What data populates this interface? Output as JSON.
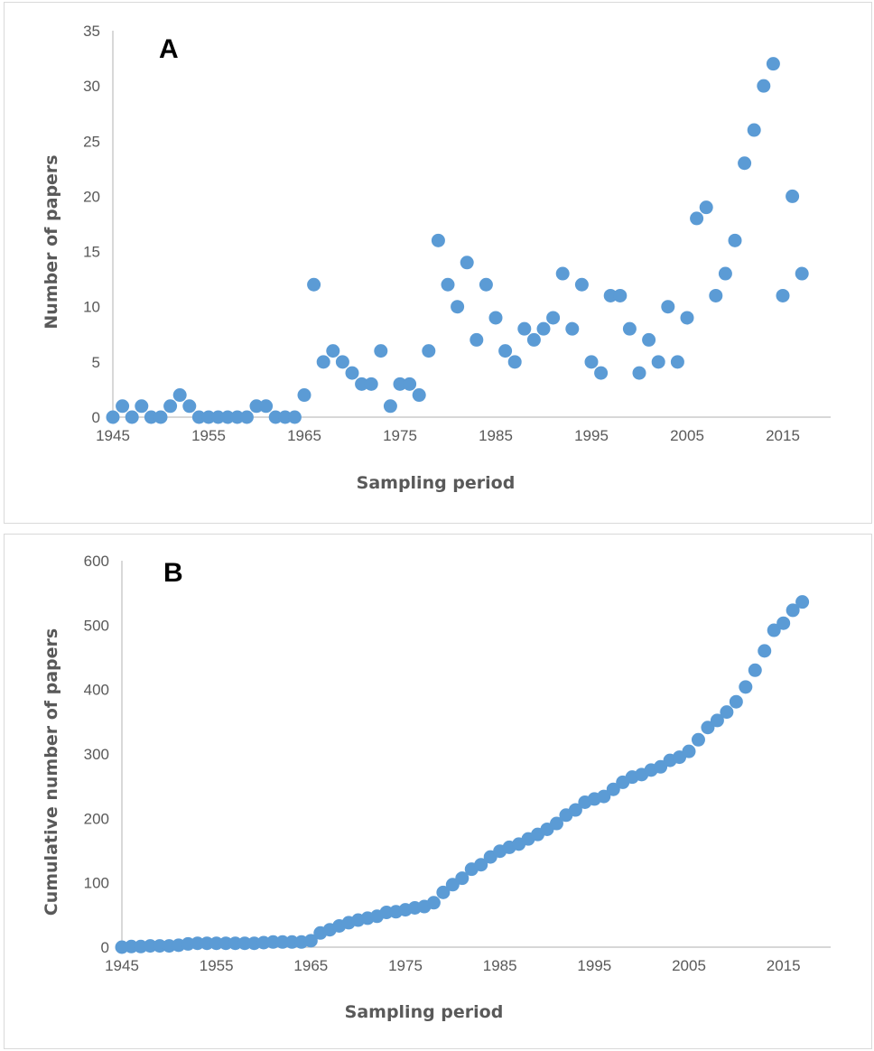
{
  "colors": {
    "marker": "#5b9bd5",
    "axis": "#bfbfbf",
    "text": "#595959"
  },
  "chart_data": [
    {
      "type": "scatter",
      "panel_label": "A",
      "xlabel": "Sampling period",
      "ylabel": "Number of papers",
      "xlim": [
        1945,
        2020
      ],
      "ylim": [
        0,
        35
      ],
      "xticks": [
        1945,
        1955,
        1965,
        1975,
        1985,
        1995,
        2005,
        2015
      ],
      "yticks": [
        0,
        5,
        10,
        15,
        20,
        25,
        30,
        35
      ],
      "grid": false,
      "legend": "none",
      "series": [
        {
          "x": [
            1945,
            1946,
            1947,
            1948,
            1949,
            1950,
            1951,
            1952,
            1953,
            1954,
            1955,
            1956,
            1957,
            1958,
            1959,
            1960,
            1961,
            1962,
            1963,
            1964,
            1965,
            1966,
            1967,
            1968,
            1969,
            1970,
            1971,
            1972,
            1973,
            1974,
            1975,
            1976,
            1977,
            1978,
            1979,
            1980,
            1981,
            1982,
            1983,
            1984,
            1985,
            1986,
            1987,
            1988,
            1989,
            1990,
            1991,
            1992,
            1993,
            1994,
            1995,
            1996,
            1997,
            1998,
            1999,
            2000,
            2001,
            2002,
            2003,
            2004,
            2005,
            2006,
            2007,
            2008,
            2009,
            2010,
            2011,
            2012,
            2013,
            2014,
            2015,
            2016,
            2017
          ],
          "y": [
            0,
            1,
            0,
            1,
            0,
            0,
            1,
            2,
            1,
            0,
            0,
            0,
            0,
            0,
            0,
            1,
            1,
            0,
            0,
            0,
            2,
            12,
            5,
            6,
            5,
            4,
            3,
            3,
            6,
            1,
            3,
            3,
            2,
            6,
            16,
            12,
            10,
            14,
            7,
            12,
            9,
            6,
            5,
            8,
            7,
            8,
            9,
            13,
            8,
            12,
            5,
            4,
            11,
            11,
            8,
            4,
            7,
            5,
            10,
            5,
            9,
            18,
            19,
            11,
            13,
            16,
            23,
            26,
            30,
            32,
            11,
            20,
            13
          ]
        }
      ]
    },
    {
      "type": "scatter",
      "panel_label": "B",
      "xlabel": "Sampling period",
      "ylabel": "Cumulative number of papers",
      "xlim": [
        1945,
        2020
      ],
      "ylim": [
        0,
        600
      ],
      "xticks": [
        1945,
        1955,
        1965,
        1975,
        1985,
        1995,
        2005,
        2015
      ],
      "yticks": [
        0,
        100,
        200,
        300,
        400,
        500,
        600
      ],
      "grid": false,
      "legend": "none",
      "series": [
        {
          "x": [
            1945,
            1946,
            1947,
            1948,
            1949,
            1950,
            1951,
            1952,
            1953,
            1954,
            1955,
            1956,
            1957,
            1958,
            1959,
            1960,
            1961,
            1962,
            1963,
            1964,
            1965,
            1966,
            1967,
            1968,
            1969,
            1970,
            1971,
            1972,
            1973,
            1974,
            1975,
            1976,
            1977,
            1978,
            1979,
            1980,
            1981,
            1982,
            1983,
            1984,
            1985,
            1986,
            1987,
            1988,
            1989,
            1990,
            1991,
            1992,
            1993,
            1994,
            1995,
            1996,
            1997,
            1998,
            1999,
            2000,
            2001,
            2002,
            2003,
            2004,
            2005,
            2006,
            2007,
            2008,
            2009,
            2010,
            2011,
            2012,
            2013,
            2014,
            2015,
            2016,
            2017
          ],
          "y": [
            0,
            1,
            1,
            2,
            2,
            2,
            3,
            5,
            6,
            6,
            6,
            6,
            6,
            6,
            6,
            7,
            8,
            8,
            8,
            8,
            10,
            22,
            27,
            33,
            38,
            42,
            45,
            48,
            54,
            55,
            58,
            61,
            63,
            69,
            85,
            97,
            107,
            121,
            128,
            140,
            149,
            155,
            160,
            168,
            175,
            183,
            192,
            205,
            213,
            225,
            230,
            234,
            245,
            256,
            264,
            268,
            275,
            280,
            290,
            295,
            304,
            322,
            341,
            352,
            365,
            381,
            404,
            430,
            460,
            492,
            503,
            523,
            536
          ]
        }
      ]
    }
  ]
}
